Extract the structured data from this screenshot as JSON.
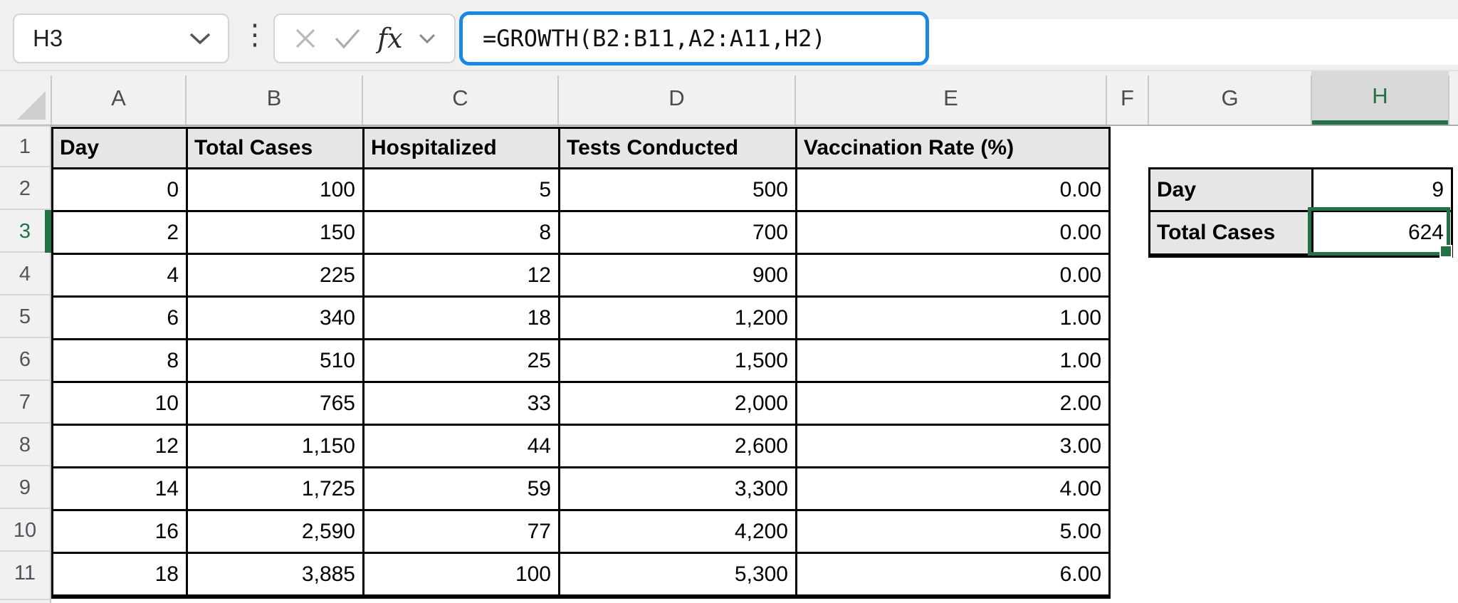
{
  "formula_bar": {
    "name_box_value": "H3",
    "formula": "=GROWTH(B2:B11,A2:A11,H2)",
    "fx_label": "fx"
  },
  "grid": {
    "column_letters": [
      "A",
      "B",
      "C",
      "D",
      "E",
      "F",
      "G",
      "H"
    ],
    "row_numbers": [
      "1",
      "2",
      "3",
      "4",
      "5",
      "6",
      "7",
      "8",
      "9",
      "10",
      "11"
    ],
    "selected_cell": "H3",
    "selected_column": "H",
    "selected_row": "3"
  },
  "main_table": {
    "headers": [
      "Day",
      "Total Cases",
      "Hospitalized",
      "Tests Conducted",
      "Vaccination Rate (%)"
    ],
    "rows": [
      [
        "0",
        "100",
        "5",
        "500",
        "0.00"
      ],
      [
        "2",
        "150",
        "8",
        "700",
        "0.00"
      ],
      [
        "4",
        "225",
        "12",
        "900",
        "0.00"
      ],
      [
        "6",
        "340",
        "18",
        "1,200",
        "1.00"
      ],
      [
        "8",
        "510",
        "25",
        "1,500",
        "1.00"
      ],
      [
        "10",
        "765",
        "33",
        "2,000",
        "2.00"
      ],
      [
        "12",
        "1,150",
        "44",
        "2,600",
        "3.00"
      ],
      [
        "14",
        "1,725",
        "59",
        "3,300",
        "4.00"
      ],
      [
        "16",
        "2,590",
        "77",
        "4,200",
        "5.00"
      ],
      [
        "18",
        "3,885",
        "100",
        "5,300",
        "6.00"
      ]
    ]
  },
  "side_table": {
    "rows": [
      {
        "label": "Day",
        "value": "9",
        "selected": false
      },
      {
        "label": "Total Cases",
        "value": "624",
        "selected": true
      }
    ]
  },
  "colors": {
    "accent_green": "#217346",
    "formula_focus_blue": "#1787e8",
    "header_cell_fill": "#e6e6e6",
    "chrome_background": "#f0f0f0",
    "selected_column_fill": "#d9d9d9",
    "grid_border": "#000000"
  }
}
